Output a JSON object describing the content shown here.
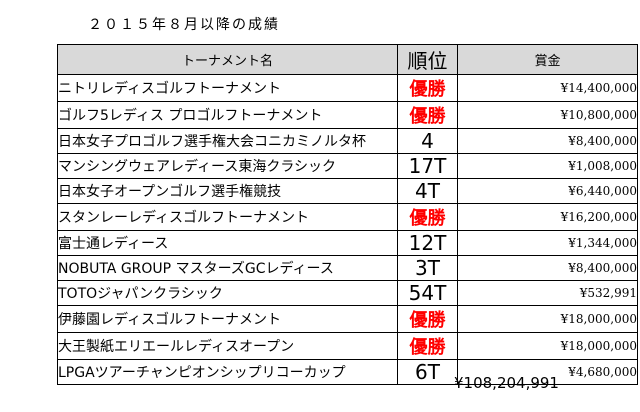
{
  "title": "２０１５年８月以降の成績",
  "headers": {
    "name": "トーナメント名",
    "rank": "順位",
    "prize": "賞金"
  },
  "rows": [
    {
      "name": "ニトリレディスゴルフトーナメント",
      "rank": "優勝",
      "prize": "¥14,400,000",
      "win": true
    },
    {
      "name": "ゴルフ5レディス プロゴルフトーナメント",
      "rank": "優勝",
      "prize": "¥10,800,000",
      "win": true
    },
    {
      "name": "日本女子プロゴルフ選手権大会コニカミノルタ杯",
      "rank": "4",
      "prize": "¥8,400,000",
      "win": false
    },
    {
      "name": "マンシングウェアレディース東海クラシック",
      "rank": "17T",
      "prize": "¥1,008,000",
      "win": false
    },
    {
      "name": "日本女子オープンゴルフ選手権競技",
      "rank": "4T",
      "prize": "¥6,440,000",
      "win": false
    },
    {
      "name": "スタンレーレディスゴルフトーナメント",
      "rank": "優勝",
      "prize": "¥16,200,000",
      "win": true
    },
    {
      "name": "富士通レディース",
      "rank": "12T",
      "prize": "¥1,344,000",
      "win": false
    },
    {
      "name": "NOBUTA GROUP マスターズGCレディース",
      "rank": "3T",
      "prize": "¥8,400,000",
      "win": false
    },
    {
      "name": "TOTOジャパンクラシック",
      "rank": "54T",
      "prize": "¥532,991",
      "win": false
    },
    {
      "name": "伊藤園レディスゴルフトーナメント",
      "rank": "優勝",
      "prize": "¥18,000,000",
      "win": true
    },
    {
      "name": "大王製紙エリエールレディスオープン",
      "rank": "優勝",
      "prize": "¥18,000,000",
      "win": true
    },
    {
      "name": "LPGAツアーチャンピオンシップリコーカップ",
      "rank": "6T",
      "prize": "¥4,680,000",
      "win": false
    }
  ],
  "total": "¥108,204,991",
  "colors": {
    "win": "#ff0000",
    "header_bg": "#d9d9d9"
  }
}
